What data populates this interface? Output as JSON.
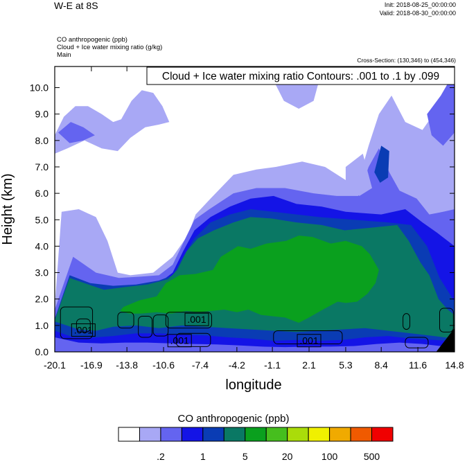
{
  "header": {
    "title": "W-E at 8S",
    "init": "Init: 2018-08-25_00:00:00",
    "valid": "Valid: 2018-08-30_00:00:00",
    "fields": [
      "CO anthropogenic   (ppb)",
      "Cloud + Ice water mixing ratio   (g/kg)",
      "Main"
    ],
    "cross_section": "Cross-Section: (130,346) to (454,346)"
  },
  "chart_data": {
    "type": "filled-contour cross-section",
    "title": "W-E at 8S",
    "fill_variable": "CO anthropogenic (ppb)",
    "contour_variable": "Cloud + Ice water mixing ratio (g/kg)",
    "contour_info": "Cloud + Ice water mixing ratio Contours: .001 to .1 by .099",
    "contour_labels": [
      ".001",
      ".001",
      ".001",
      ".001"
    ],
    "xlabel": "longitude",
    "ylabel": "Height (km)",
    "x_ticks": [
      "-20.1",
      "-16.9",
      "-13.8",
      "-10.6",
      "-7.4",
      "-4.2",
      "-1.1",
      "2.1",
      "5.3",
      "8.4",
      "11.6",
      "14.8"
    ],
    "y_ticks": [
      "0.0",
      "1.0",
      "2.0",
      "3.0",
      "4.0",
      "5.0",
      "6.0",
      "7.0",
      "8.0",
      "9.0",
      "10.0"
    ],
    "xlim": [
      -20.1,
      14.8
    ],
    "ylim": [
      0,
      10.8
    ],
    "colorbar": {
      "title": "CO anthropogenic  (ppb)",
      "colors": [
        "#ffffff",
        "#a8a8f5",
        "#6464f0",
        "#1414e6",
        "#0a3cb4",
        "#0a7864",
        "#0aa01e",
        "#46be1e",
        "#aadc0a",
        "#f0f000",
        "#f0aa00",
        "#f05a00",
        "#f00000"
      ],
      "labels": [
        ".2",
        "1",
        "5",
        "20",
        "100",
        "500"
      ]
    },
    "fill_layers": [
      {
        "color": "#a8a8f5",
        "top": [
          [
            -20.1,
            1.7
          ],
          [
            -19.5,
            5.3
          ],
          [
            -18,
            5.4
          ],
          [
            -16.5,
            5.1
          ],
          [
            -15.5,
            4.2
          ],
          [
            -14.6,
            3.0
          ],
          [
            -13.5,
            2.9
          ],
          [
            -11.5,
            3.0
          ],
          [
            -9.8,
            3.6
          ],
          [
            -8.5,
            4.4
          ],
          [
            -7.8,
            5.2
          ],
          [
            -6.5,
            5.8
          ],
          [
            -4.5,
            6.7
          ],
          [
            -2.5,
            6.9
          ],
          [
            -0.8,
            7.0
          ],
          [
            1.5,
            7.2
          ],
          [
            3.5,
            7.0
          ],
          [
            5.3,
            6.5
          ],
          [
            6.5,
            6.6
          ],
          [
            7.3,
            7.8
          ],
          [
            8.2,
            9.0
          ],
          [
            9.3,
            9.7
          ],
          [
            10.5,
            8.7
          ],
          [
            12.0,
            8.4
          ],
          [
            13.3,
            9.2
          ],
          [
            14.4,
            10.3
          ],
          [
            14.8,
            10.6
          ]
        ]
      },
      {
        "color": "#6464f0",
        "top": [
          [
            -20.1,
            1.6
          ],
          [
            -18.5,
            3.6
          ],
          [
            -16.5,
            3.0
          ],
          [
            -14.5,
            2.8
          ],
          [
            -12.5,
            2.85
          ],
          [
            -11,
            2.9
          ],
          [
            -9.8,
            3.3
          ],
          [
            -8.8,
            4.2
          ],
          [
            -7.9,
            5.0
          ],
          [
            -6.6,
            5.4
          ],
          [
            -4.5,
            6.0
          ],
          [
            -2.5,
            6.2
          ],
          [
            0.0,
            6.2
          ],
          [
            2.5,
            6.0
          ],
          [
            4.5,
            5.9
          ],
          [
            6.4,
            5.9
          ],
          [
            7.3,
            7.0
          ],
          [
            8.2,
            7.7
          ],
          [
            9.1,
            6.8
          ],
          [
            10,
            6.1
          ],
          [
            11.5,
            5.8
          ],
          [
            12.6,
            5.2
          ],
          [
            13.8,
            5.3
          ],
          [
            14.8,
            5.4
          ]
        ]
      },
      {
        "color": "#1414e6",
        "top": [
          [
            -20.1,
            1.3
          ],
          [
            -18,
            1.8
          ],
          [
            -16,
            1.75
          ],
          [
            -14,
            2.0
          ],
          [
            -12.5,
            2.25
          ],
          [
            -11,
            2.6
          ],
          [
            -9.8,
            3.0
          ],
          [
            -8.9,
            3.8
          ],
          [
            -7.9,
            4.6
          ],
          [
            -6.5,
            5.1
          ],
          [
            -4.8,
            5.5
          ],
          [
            -3,
            5.8
          ],
          [
            -1,
            5.9
          ],
          [
            1,
            5.6
          ],
          [
            3.2,
            5.5
          ],
          [
            5.3,
            5.3
          ],
          [
            8.4,
            5.2
          ],
          [
            10.5,
            5.4
          ],
          [
            12,
            4.9
          ],
          [
            13.3,
            4.5
          ],
          [
            14.8,
            4.0
          ]
        ]
      },
      {
        "color": "#0a3cb4",
        "top": [
          [
            -20.1,
            1.25
          ],
          [
            -18.8,
            2.9
          ],
          [
            -17,
            2.6
          ],
          [
            -15,
            2.5
          ],
          [
            -13,
            2.55
          ],
          [
            -11,
            2.7
          ],
          [
            -9.8,
            2.9
          ],
          [
            -8.9,
            3.6
          ],
          [
            -7.9,
            4.3
          ],
          [
            -6.5,
            4.9
          ],
          [
            -4.8,
            5.2
          ],
          [
            -3,
            5.4
          ],
          [
            -1,
            5.3
          ],
          [
            1,
            5.2
          ],
          [
            3,
            5.1
          ],
          [
            6,
            5.0
          ],
          [
            9,
            4.9
          ],
          [
            11,
            4.8
          ],
          [
            12.4,
            4.0
          ],
          [
            13.5,
            2.8
          ],
          [
            14.8,
            1.9
          ]
        ]
      },
      {
        "color": "#0a7864",
        "top": [
          [
            -20.1,
            1.2
          ],
          [
            -18.8,
            2.8
          ],
          [
            -17.5,
            2.6
          ],
          [
            -15.8,
            2.35
          ],
          [
            -14,
            2.45
          ],
          [
            -12,
            2.55
          ],
          [
            -10.2,
            2.75
          ],
          [
            -9.4,
            3.1
          ],
          [
            -8.6,
            3.8
          ],
          [
            -7.6,
            4.3
          ],
          [
            -6.2,
            4.6
          ],
          [
            -4.5,
            4.9
          ],
          [
            -3,
            5.1
          ],
          [
            -1.2,
            5.05
          ],
          [
            1,
            4.9
          ],
          [
            3.2,
            4.8
          ],
          [
            5.2,
            4.6
          ],
          [
            7.5,
            4.7
          ],
          [
            9.8,
            4.8
          ],
          [
            10.8,
            4.2
          ],
          [
            11.8,
            3.4
          ],
          [
            12.6,
            2.9
          ],
          [
            13.4,
            2.0
          ],
          [
            14.2,
            1.6
          ],
          [
            14.8,
            1.4
          ]
        ]
      }
    ],
    "fill_patches": [
      {
        "color": "#0aa01e",
        "outline": [
          [
            -14.1,
            1.7
          ],
          [
            -12.7,
            1.95
          ],
          [
            -11.2,
            2.1
          ],
          [
            -10.4,
            2.6
          ],
          [
            -9.2,
            2.9
          ],
          [
            -7.8,
            2.95
          ],
          [
            -6.3,
            3.1
          ],
          [
            -5.6,
            3.6
          ],
          [
            -4.1,
            4.0
          ],
          [
            -3.0,
            3.9
          ],
          [
            -1.6,
            4.1
          ],
          [
            0.1,
            4.2
          ],
          [
            1.2,
            4.4
          ],
          [
            2.4,
            4.35
          ],
          [
            4.0,
            4.1
          ],
          [
            5.3,
            4.2
          ],
          [
            6.7,
            4.0
          ],
          [
            7.4,
            3.7
          ],
          [
            8.2,
            3.1
          ],
          [
            7.9,
            2.6
          ],
          [
            7.2,
            2.2
          ],
          [
            6.3,
            1.9
          ],
          [
            5.3,
            1.85
          ],
          [
            4.6,
            1.9
          ],
          [
            3.3,
            1.6
          ],
          [
            2.1,
            1.3
          ],
          [
            1.2,
            1.1
          ],
          [
            0.0,
            1.3
          ],
          [
            -1.1,
            1.35
          ],
          [
            -2.1,
            1.4
          ],
          [
            -3.2,
            1.6
          ],
          [
            -4.2,
            1.5
          ],
          [
            -5.3,
            1.6
          ],
          [
            -6.4,
            1.55
          ],
          [
            -7.6,
            1.5
          ],
          [
            -8.6,
            1.55
          ],
          [
            -9.9,
            1.45
          ],
          [
            -11.2,
            1.5
          ],
          [
            -12.6,
            1.45
          ],
          [
            -13.6,
            1.45
          ],
          [
            -14.4,
            1.55
          ]
        ]
      }
    ],
    "bottom_bands": [
      {
        "color": "#0a3cb4",
        "top": [
          [
            -20.1,
            1.15
          ],
          [
            -18,
            0.85
          ],
          [
            -16.5,
            0.8
          ],
          [
            -15,
            0.95
          ],
          [
            -13,
            1.0
          ],
          [
            -11,
            0.9
          ],
          [
            -9,
            1.0
          ],
          [
            -7,
            0.95
          ],
          [
            -5,
            0.9
          ],
          [
            -3,
            0.85
          ],
          [
            -1,
            0.8
          ],
          [
            1,
            0.75
          ],
          [
            3,
            0.8
          ],
          [
            5,
            0.85
          ],
          [
            7,
            0.9
          ],
          [
            9,
            0.8
          ],
          [
            11,
            0.7
          ],
          [
            13,
            0.6
          ],
          [
            14.8,
            0.5
          ]
        ]
      },
      {
        "color": "#1414e6",
        "top": [
          [
            -20.1,
            0.8
          ],
          [
            -18.5,
            0.55
          ],
          [
            -16.5,
            0.55
          ],
          [
            -15,
            0.6
          ],
          [
            -13,
            0.7
          ],
          [
            -11,
            0.7
          ],
          [
            -9,
            0.65
          ],
          [
            -7,
            0.62
          ],
          [
            -5,
            0.55
          ],
          [
            -3,
            0.5
          ],
          [
            -1,
            0.42
          ],
          [
            1,
            0.45
          ],
          [
            3,
            0.42
          ],
          [
            5,
            0.45
          ],
          [
            7,
            0.55
          ],
          [
            9,
            0.6
          ],
          [
            11,
            0.5
          ],
          [
            13,
            0.45
          ],
          [
            14.8,
            0.4
          ]
        ]
      },
      {
        "color": "#6464f0",
        "top": [
          [
            -20.1,
            0.55
          ],
          [
            -18,
            0.35
          ],
          [
            -16,
            0.32
          ],
          [
            -14,
            0.35
          ],
          [
            -12,
            0.35
          ],
          [
            -10,
            0.32
          ],
          [
            -8,
            0.3
          ],
          [
            -6,
            0.28
          ],
          [
            -4.2,
            0.25
          ],
          [
            -2,
            0.2
          ],
          [
            0,
            0.18
          ],
          [
            2,
            0.2
          ],
          [
            4,
            0.2
          ],
          [
            6,
            0.22
          ],
          [
            8,
            0.3
          ],
          [
            10,
            0.35
          ],
          [
            12,
            0.3
          ],
          [
            14,
            0.2
          ],
          [
            14.8,
            0.15
          ]
        ]
      }
    ],
    "upper_patches": [
      {
        "color": "#a8a8f5",
        "outline": [
          [
            -20.1,
            8.2
          ],
          [
            -19.3,
            8.9
          ],
          [
            -18.3,
            9.3
          ],
          [
            -17.2,
            9.3
          ],
          [
            -16.0,
            9.0
          ],
          [
            -15.0,
            8.7
          ],
          [
            -14.3,
            8.8
          ],
          [
            -13.4,
            9.5
          ],
          [
            -12.5,
            9.9
          ],
          [
            -11.5,
            9.8
          ],
          [
            -10.7,
            9.3
          ],
          [
            -10.1,
            8.7
          ],
          [
            -11.0,
            8.6
          ],
          [
            -12.2,
            8.5
          ],
          [
            -13.5,
            8.1
          ],
          [
            -14.6,
            7.6
          ],
          [
            -16.0,
            7.7
          ],
          [
            -17.5,
            8.0
          ],
          [
            -19.0,
            7.7
          ],
          [
            -20.1,
            7.5
          ]
        ]
      },
      {
        "color": "#6464f0",
        "outline": [
          [
            -19.8,
            8.3
          ],
          [
            -18.7,
            8.7
          ],
          [
            -17.6,
            8.5
          ],
          [
            -16.6,
            8.2
          ],
          [
            -17.6,
            8.0
          ],
          [
            -18.8,
            7.9
          ]
        ]
      },
      {
        "color": "#a8a8f5",
        "outline": [
          [
            -0.8,
            10.1
          ],
          [
            0.0,
            10.6
          ],
          [
            1.5,
            10.8
          ],
          [
            3.0,
            10.3
          ],
          [
            2.5,
            9.5
          ],
          [
            1.2,
            9.2
          ],
          [
            -0.1,
            9.5
          ]
        ]
      },
      {
        "color": "#a8a8f5",
        "outline": [
          [
            5.3,
            7.0
          ],
          [
            6.8,
            7.5
          ],
          [
            7.6,
            6.2
          ],
          [
            6.5,
            5.9
          ],
          [
            5.3,
            6.3
          ]
        ]
      },
      {
        "color": "#0a3cb4",
        "outline": [
          [
            7.8,
            6.8
          ],
          [
            8.4,
            7.8
          ],
          [
            9.1,
            7.6
          ],
          [
            9.0,
            6.6
          ],
          [
            8.3,
            6.4
          ]
        ]
      },
      {
        "color": "#6464f0",
        "outline": [
          [
            12.4,
            9.0
          ],
          [
            13.6,
            9.7
          ],
          [
            14.8,
            10.6
          ],
          [
            14.8,
            8.3
          ],
          [
            13.8,
            7.8
          ],
          [
            12.8,
            8.2
          ]
        ]
      }
    ],
    "contours": [
      {
        "x": -19.6,
        "y": 0.5,
        "w": 2.8,
        "h": 1.2
      },
      {
        "x": -18.2,
        "y": 0.75,
        "w": 1.2,
        "h": 0.5
      },
      {
        "x": -14.6,
        "y": 0.9,
        "w": 1.4,
        "h": 0.6
      },
      {
        "x": -12.8,
        "y": 0.55,
        "w": 1.2,
        "h": 0.8
      },
      {
        "x": -11.5,
        "y": 0.6,
        "w": 1.3,
        "h": 0.8
      },
      {
        "x": -10.4,
        "y": 0.9,
        "w": 4.0,
        "h": 0.6
      },
      {
        "x": -9.5,
        "y": 0.2,
        "w": 3.0,
        "h": 0.5
      },
      {
        "x": -1.0,
        "y": 0.3,
        "w": 6.0,
        "h": 0.5
      },
      {
        "x": 10.3,
        "y": 0.85,
        "w": 0.6,
        "h": 0.6
      },
      {
        "x": 10.5,
        "y": 0.15,
        "w": 2.0,
        "h": 0.4
      },
      {
        "x": 13.5,
        "y": 0.75,
        "w": 1.2,
        "h": 0.9
      }
    ],
    "label_positions": [
      [
        -17.6,
        0.8
      ],
      [
        -7.7,
        1.2
      ],
      [
        -9.2,
        0.4
      ],
      [
        2.1,
        0.4
      ]
    ]
  }
}
